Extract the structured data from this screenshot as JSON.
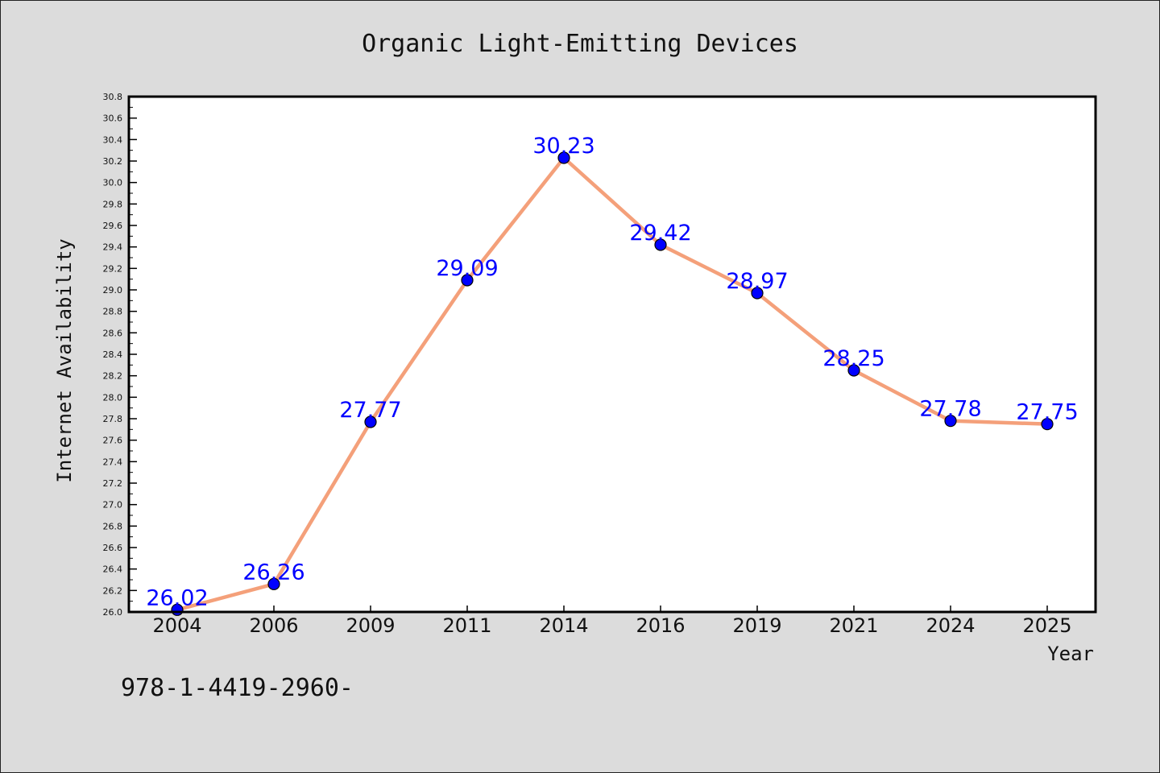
{
  "chart_data": {
    "type": "line",
    "title": "Organic Light-Emitting Devices",
    "xlabel": "Year",
    "ylabel": "Internet Availability",
    "categories": [
      "2004",
      "2006",
      "2009",
      "2011",
      "2014",
      "2016",
      "2019",
      "2021",
      "2024",
      "2025"
    ],
    "values": [
      26.02,
      26.26,
      27.77,
      29.09,
      30.23,
      29.42,
      28.97,
      28.25,
      27.78,
      27.75
    ],
    "value_labels": [
      "26.02",
      "26.26",
      "27.77",
      "29.09",
      "30.23",
      "29.42",
      "28.97",
      "28.25",
      "27.78",
      "27.75"
    ],
    "ylim": [
      26.0,
      30.8
    ],
    "y_ticks": [
      "26.0",
      "26.2",
      "26.4",
      "26.6",
      "26.8",
      "27.0",
      "27.2",
      "27.4",
      "27.6",
      "27.8",
      "28.0",
      "28.2",
      "28.4",
      "28.6",
      "28.8",
      "29.0",
      "29.2",
      "29.4",
      "29.6",
      "29.8",
      "30.0",
      "30.2",
      "30.4",
      "30.6",
      "30.8"
    ],
    "grid": false,
    "line_color": "#f4a07a",
    "marker_color": "#0000ff",
    "label_color": "#0000ff"
  },
  "footer_text": "978-1-4419-2960-"
}
